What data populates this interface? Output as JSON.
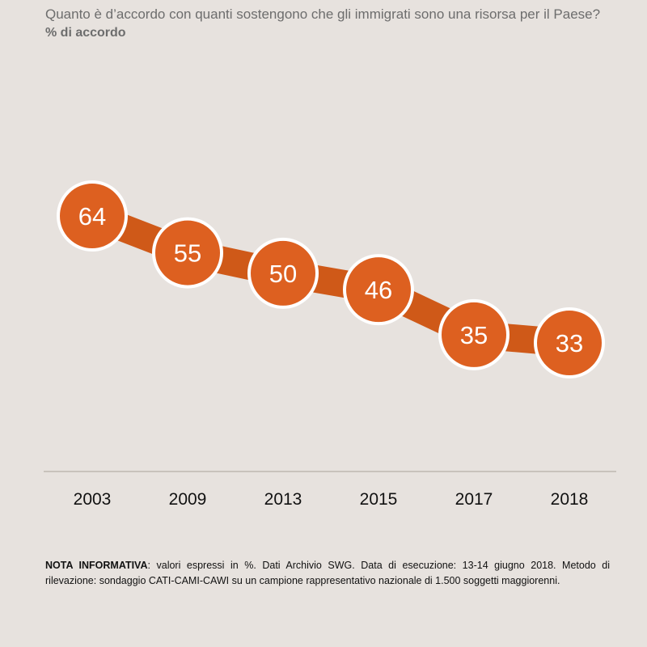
{
  "chart_data": {
    "type": "line",
    "title": "Quanto è d’accordo con quanti sostengono che gli immigrati sono una risorsa per il Paese?",
    "subtitle": "% di accordo",
    "categories": [
      "2003",
      "2009",
      "2013",
      "2015",
      "2017",
      "2018"
    ],
    "series": [
      {
        "values": [
          64,
          55,
          50,
          46,
          35,
          33
        ]
      }
    ],
    "ylim": [
      0,
      100
    ],
    "grid": false,
    "legend": "none",
    "colors": {
      "line": "#cf5918",
      "marker": "#dd6020",
      "marker_border": "#ffffff",
      "axis": "#c8c2bc",
      "background": "#e7e2de"
    }
  },
  "note": {
    "label": "NOTA INFORMATIVA",
    "text": ": valori espressi in %. Dati Archivio SWG. Data di esecuzione: 13-14 giugno 2018. Metodo di rilevazione: sondaggio CATI-CAMI-CAWI su un campione rappresentativo nazionale di 1.500 soggetti maggiorenni."
  }
}
